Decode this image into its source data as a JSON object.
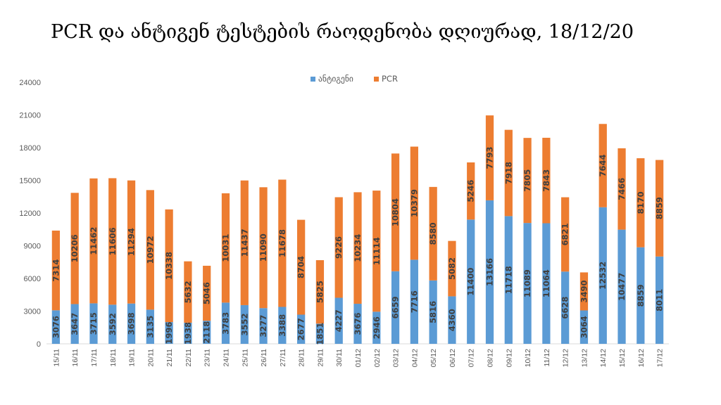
{
  "chart_data": {
    "type": "bar",
    "stacked": true,
    "title": "PCR და ანტიგენ ტესტების რაოდენობა დღიურად, 18/12/20",
    "ylim": [
      0,
      24000
    ],
    "yticks": [
      0,
      3000,
      6000,
      9000,
      12000,
      15000,
      18000,
      21000,
      24000
    ],
    "legend_position": "top-center",
    "grid": false,
    "categories": [
      "15/11",
      "16/11",
      "17/11",
      "18/11",
      "19/11",
      "20/11",
      "21/11",
      "22/11",
      "23/11",
      "24/11",
      "25/11",
      "26/11",
      "27/11",
      "28/11",
      "29/11",
      "30/11",
      "01/12",
      "02/12",
      "03/12",
      "04/12",
      "05/12",
      "06/12",
      "07/12",
      "08/12",
      "09/12",
      "10/12",
      "11/12",
      "12/12",
      "13/12",
      "14/12",
      "15/12",
      "16/12",
      "17/12"
    ],
    "series": [
      {
        "name": "ანტიგენი",
        "color": "#5B9BD5",
        "values": [
          3076,
          3647,
          3715,
          3592,
          3698,
          3135,
          1996,
          1938,
          2118,
          3783,
          3552,
          3277,
          3388,
          2677,
          1851,
          4227,
          3676,
          2946,
          6659,
          7716,
          5816,
          4360,
          11400,
          13166,
          11718,
          11089,
          11064,
          6628,
          3064,
          12532,
          10477,
          8859,
          8011
        ]
      },
      {
        "name": "PCR",
        "color": "#ED7D31",
        "values": [
          7314,
          10206,
          11462,
          11606,
          11294,
          10972,
          10338,
          5632,
          5046,
          10031,
          11437,
          11090,
          11678,
          8704,
          5825,
          9226,
          10234,
          11114,
          10804,
          10379,
          8580,
          5082,
          5246,
          7793,
          7918,
          7805,
          7843,
          6821,
          3490,
          7644,
          7466,
          8170,
          8859
        ]
      }
    ]
  }
}
